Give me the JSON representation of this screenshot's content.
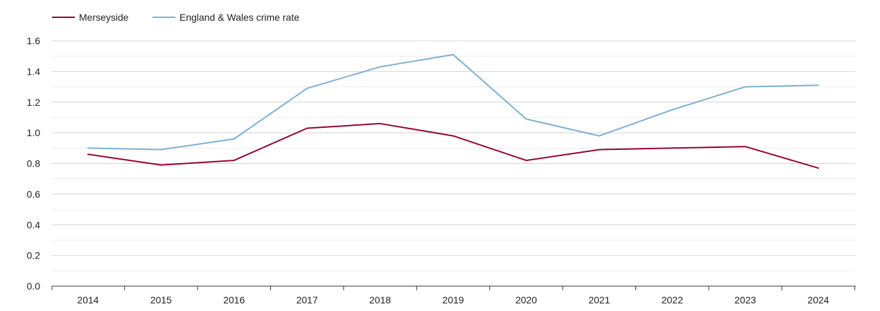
{
  "chart_data": {
    "type": "line",
    "title": "",
    "xlabel": "",
    "ylabel": "",
    "categories": [
      "2014",
      "2015",
      "2016",
      "2017",
      "2018",
      "2019",
      "2020",
      "2021",
      "2022",
      "2023",
      "2024"
    ],
    "ylim": [
      0,
      1.6
    ],
    "yticks": [
      "0.0",
      "0.2",
      "0.4",
      "0.6",
      "0.8",
      "1.0",
      "1.2",
      "1.4",
      "1.6"
    ],
    "grid": true,
    "legend_position": "top-left",
    "series": [
      {
        "name": "Merseyside",
        "color": "#990033",
        "values": [
          0.86,
          0.79,
          0.82,
          1.03,
          1.06,
          0.98,
          0.82,
          0.89,
          0.9,
          0.91,
          0.77
        ]
      },
      {
        "name": "England & Wales crime rate",
        "color": "#7bb0d2",
        "values": [
          0.9,
          0.89,
          0.96,
          1.29,
          1.43,
          1.51,
          1.09,
          0.98,
          1.15,
          1.3,
          1.31
        ]
      }
    ]
  }
}
